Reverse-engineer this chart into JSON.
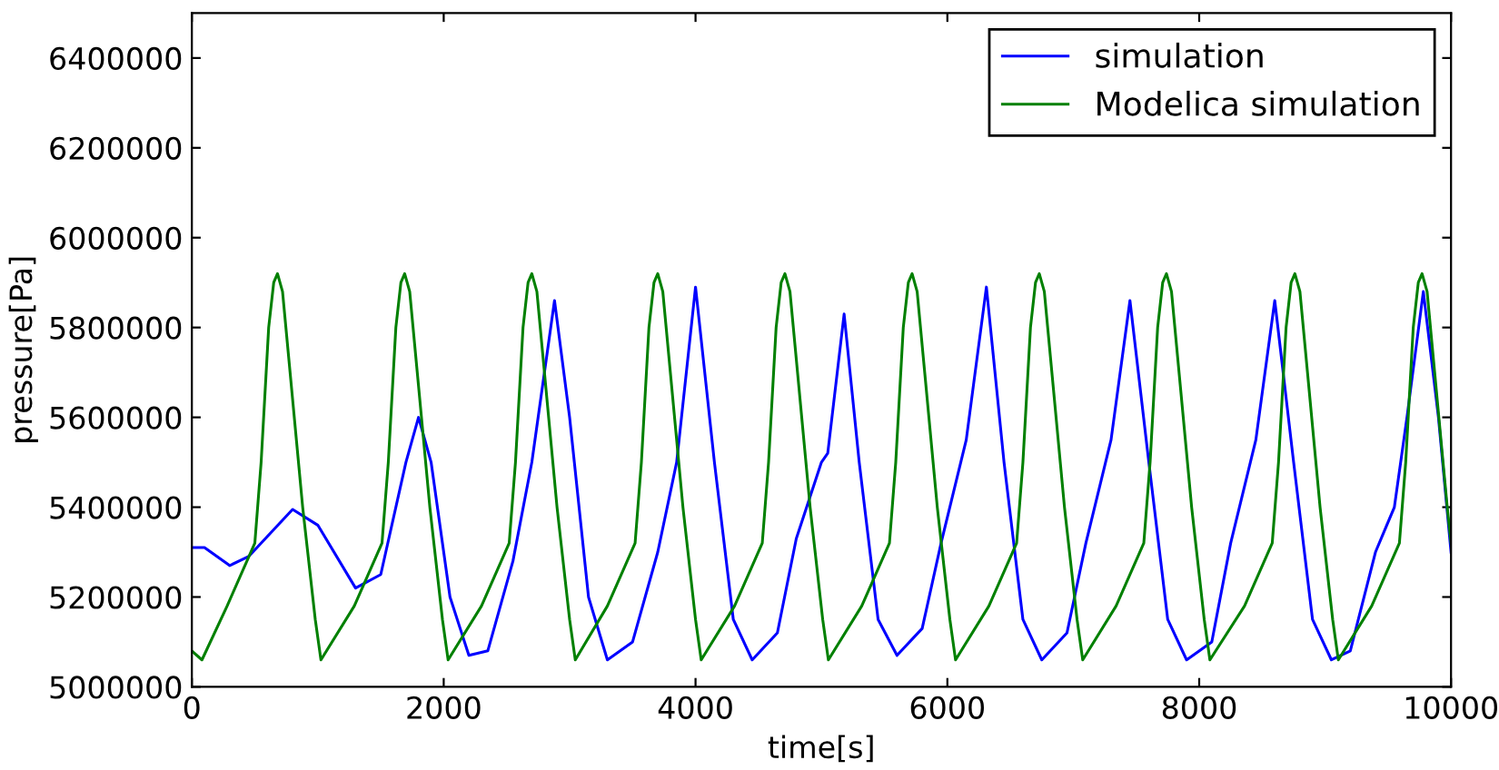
{
  "chart_data": {
    "type": "line",
    "xlabel": "time[s]",
    "ylabel": "pressure[Pa]",
    "xlim": [
      0,
      10000
    ],
    "xticks": [
      0,
      2000,
      4000,
      6000,
      8000,
      10000
    ],
    "ylim": [
      5000000,
      6500000
    ],
    "yticks": [
      5000000,
      5200000,
      5400000,
      5600000,
      5800000,
      6000000,
      6200000,
      6400000
    ],
    "grid": false,
    "legend": "top right",
    "marker": "none",
    "line_style": "solid",
    "series": [
      {
        "name": "simulation",
        "color": "#0000ff",
        "x": [
          0,
          100,
          300,
          450,
          800,
          1000,
          1300,
          1500,
          1700,
          1800,
          1900,
          2050,
          2200,
          2350,
          2550,
          2700,
          2880,
          3000,
          3150,
          3300,
          3500,
          3700,
          3850,
          4000,
          4150,
          4300,
          4450,
          4650,
          4800,
          5000,
          5050,
          5180,
          5300,
          5450,
          5600,
          5800,
          5950,
          6150,
          6310,
          6450,
          6600,
          6750,
          6950,
          7100,
          7300,
          7450,
          7600,
          7750,
          7900,
          8100,
          8250,
          8450,
          8600,
          8750,
          8900,
          9050,
          9200,
          9400,
          9550,
          9650,
          9780,
          9900,
          10000
        ],
        "values": [
          5310000,
          5310000,
          5270000,
          5290000,
          5395000,
          5360000,
          5220000,
          5250000,
          5500000,
          5600000,
          5500000,
          5200000,
          5070000,
          5080000,
          5280000,
          5500000,
          5860000,
          5600000,
          5200000,
          5060000,
          5100000,
          5300000,
          5500000,
          5890000,
          5500000,
          5150000,
          5060000,
          5120000,
          5330000,
          5500000,
          5520000,
          5830000,
          5500000,
          5150000,
          5070000,
          5130000,
          5320000,
          5550000,
          5890000,
          5500000,
          5150000,
          5060000,
          5120000,
          5320000,
          5550000,
          5860000,
          5500000,
          5150000,
          5060000,
          5100000,
          5320000,
          5550000,
          5860000,
          5500000,
          5150000,
          5060000,
          5080000,
          5300000,
          5400000,
          5600000,
          5880000,
          5600000,
          5300000
        ]
      },
      {
        "name": "Modelica simulation",
        "color": "#008000",
        "x": [
          0,
          80,
          280,
          500,
          550,
          610,
          650,
          680,
          720,
          780,
          880,
          980,
          1025,
          1290,
          1510,
          1560,
          1620,
          1660,
          1690,
          1730,
          1790,
          1890,
          1990,
          2035,
          2300,
          2520,
          2570,
          2630,
          2670,
          2700,
          2740,
          2800,
          2900,
          3000,
          3045,
          3300,
          3520,
          3570,
          3630,
          3670,
          3700,
          3740,
          3800,
          3900,
          4000,
          4045,
          4310,
          4530,
          4580,
          4640,
          4680,
          4710,
          4750,
          4810,
          4910,
          5010,
          5055,
          5320,
          5540,
          5590,
          5650,
          5690,
          5720,
          5760,
          5820,
          5920,
          6020,
          6065,
          6330,
          6550,
          6600,
          6660,
          6700,
          6730,
          6770,
          6830,
          6930,
          7030,
          7075,
          7340,
          7560,
          7610,
          7670,
          7710,
          7740,
          7780,
          7840,
          7940,
          8040,
          8085,
          8360,
          8580,
          8630,
          8690,
          8730,
          8760,
          8800,
          8860,
          8960,
          9060,
          9105,
          9370,
          9590,
          9640,
          9700,
          9740,
          9770,
          9810,
          9870,
          9970,
          10000
        ],
        "values": [
          5080000,
          5060000,
          5180000,
          5320000,
          5500000,
          5800000,
          5900000,
          5920000,
          5880000,
          5700000,
          5400000,
          5150000,
          5060000,
          5180000,
          5320000,
          5500000,
          5800000,
          5900000,
          5920000,
          5880000,
          5700000,
          5400000,
          5150000,
          5060000,
          5180000,
          5320000,
          5500000,
          5800000,
          5900000,
          5920000,
          5880000,
          5700000,
          5400000,
          5150000,
          5060000,
          5180000,
          5320000,
          5500000,
          5800000,
          5900000,
          5920000,
          5880000,
          5700000,
          5400000,
          5150000,
          5060000,
          5180000,
          5320000,
          5500000,
          5800000,
          5900000,
          5920000,
          5880000,
          5700000,
          5400000,
          5150000,
          5060000,
          5180000,
          5320000,
          5500000,
          5800000,
          5900000,
          5920000,
          5880000,
          5700000,
          5400000,
          5150000,
          5060000,
          5180000,
          5320000,
          5500000,
          5800000,
          5900000,
          5920000,
          5880000,
          5700000,
          5400000,
          5150000,
          5060000,
          5180000,
          5320000,
          5500000,
          5800000,
          5900000,
          5920000,
          5880000,
          5700000,
          5400000,
          5150000,
          5060000,
          5180000,
          5320000,
          5500000,
          5800000,
          5900000,
          5920000,
          5880000,
          5700000,
          5400000,
          5150000,
          5060000,
          5180000,
          5320000,
          5500000,
          5800000,
          5900000,
          5920000,
          5880000,
          5700000,
          5400000,
          5320000
        ]
      }
    ]
  }
}
